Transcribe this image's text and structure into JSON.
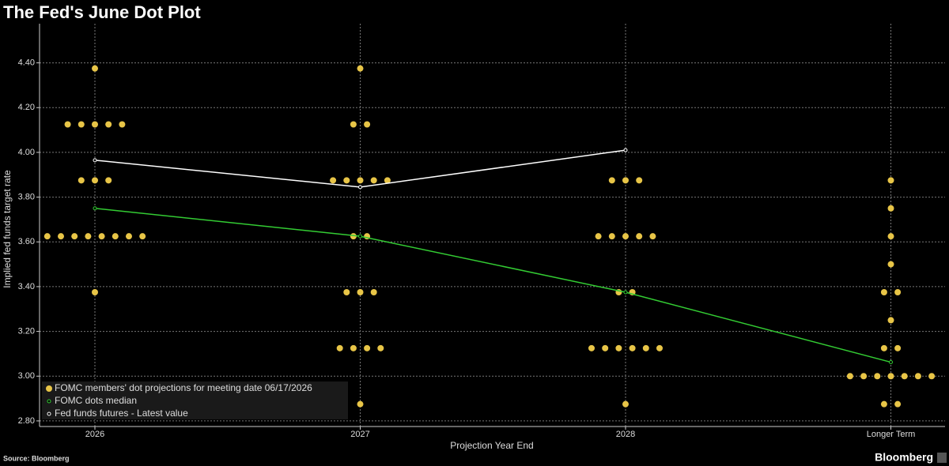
{
  "chart_data": {
    "type": "dot_plot",
    "title": "The Fed's June Dot Plot",
    "xlabel": "Projection Year End",
    "ylabel": "Implied fed funds target rate",
    "source": "Source: Bloomberg",
    "brand": "Bloomberg",
    "categories": [
      "2026",
      "2027",
      "2028",
      "Longer Term"
    ],
    "ylim": [
      2.775,
      4.575
    ],
    "yticks": [
      {
        "value": 2.8,
        "label": "2.80"
      },
      {
        "value": 3.0,
        "label": "3.00"
      },
      {
        "value": 3.2,
        "label": "3.20"
      },
      {
        "value": 3.4,
        "label": "3.40"
      },
      {
        "value": 3.6,
        "label": "3.60"
      },
      {
        "value": 3.8,
        "label": "3.80"
      },
      {
        "value": 4.0,
        "label": "4.00"
      },
      {
        "value": 4.2,
        "label": "4.20"
      },
      {
        "value": 4.4,
        "label": "4.40"
      }
    ],
    "grid": true,
    "legend": "bottom-left",
    "series": [
      {
        "name": "FOMC members' dot projections for meeting date 06/17/2026",
        "kind": "dots",
        "color": "#e8c547",
        "values": [
          [
            4.375,
            4.125,
            4.125,
            4.125,
            4.125,
            4.125,
            3.875,
            3.875,
            3.875,
            3.625,
            3.625,
            3.625,
            3.625,
            3.625,
            3.625,
            3.625,
            3.625,
            3.375
          ],
          [
            4.375,
            4.125,
            4.125,
            3.875,
            3.875,
            3.875,
            3.875,
            3.875,
            3.625,
            3.625,
            3.375,
            3.375,
            3.375,
            3.125,
            3.125,
            3.125,
            3.125,
            2.875
          ],
          [
            3.875,
            3.875,
            3.875,
            3.625,
            3.625,
            3.625,
            3.625,
            3.625,
            3.375,
            3.375,
            3.125,
            3.125,
            3.125,
            3.125,
            3.125,
            3.125,
            2.875
          ],
          [
            3.875,
            3.75,
            3.625,
            3.5,
            3.375,
            3.375,
            3.25,
            3.125,
            3.125,
            3.0,
            3.0,
            3.0,
            3.0,
            3.0,
            3.0,
            3.0,
            2.875,
            2.875
          ]
        ]
      },
      {
        "name": "FOMC dots median",
        "kind": "line",
        "color": "#33cc33",
        "values": [
          3.75,
          3.625,
          3.375,
          3.0625
        ]
      },
      {
        "name": "Fed funds futures - Latest value",
        "kind": "line",
        "color": "#ffffff",
        "values": [
          3.965,
          3.845,
          4.01,
          null
        ]
      }
    ]
  }
}
